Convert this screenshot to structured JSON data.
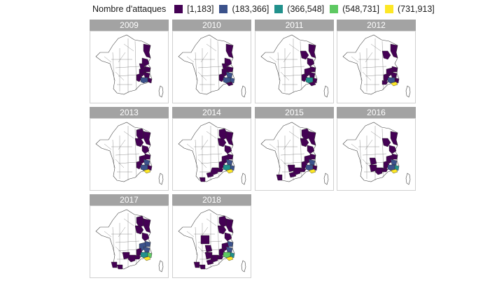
{
  "chart_data": {
    "type": "choropleth-map-facets",
    "legend": {
      "title": "Nombre d'attaques",
      "bins": [
        {
          "label": "[1,183]",
          "color": "#440154"
        },
        {
          "label": "(183,366]",
          "color": "#3b528b"
        },
        {
          "label": "(366,548]",
          "color": "#21918c"
        },
        {
          "label": "(548,731]",
          "color": "#5ec962"
        },
        {
          "label": "(731,913]",
          "color": "#fde725"
        }
      ]
    },
    "panels": [
      {
        "year": "2009",
        "regions": {
          "jura": 0,
          "isere": 0,
          "savoie": 0,
          "ain": 0,
          "drome": 0,
          "hautesalpes": 0,
          "alpesmar": 0,
          "alpesdhp": 1,
          "vosges": 0
        }
      },
      {
        "year": "2010",
        "regions": {
          "jura": 0,
          "isere": 0,
          "savoie": 0,
          "ain": 0,
          "drome": 0,
          "hautesalpes": 1,
          "alpesmar": 1,
          "alpesdhp": 1,
          "vosges": 0,
          "var": 0
        }
      },
      {
        "year": "2011",
        "regions": {
          "haute-marne": 0,
          "vosges": 0,
          "jura": 0,
          "savoie": 0,
          "isere": 0,
          "drome": 0,
          "hautesalpes": 0,
          "alpesmar": 0,
          "alpesdhp": 2,
          "var": 0
        }
      },
      {
        "year": "2012",
        "regions": {
          "vosges": 0,
          "haute-marne": 0,
          "savoie": 0,
          "isere": 0,
          "drome": 0,
          "hautesalpes": 0,
          "alpesmar": 0,
          "alpesdhp": 1,
          "var": 4,
          "vaucluse": 0
        }
      },
      {
        "year": "2013",
        "regions": {
          "vosges": 0,
          "haute-marne": 0,
          "meuse": 0,
          "jura": 0,
          "savoie": 0,
          "isere": 0,
          "drome": 0,
          "hautesalpes": 1,
          "alpesmar": 0,
          "alpesdhp": 1,
          "var": 4
        }
      },
      {
        "year": "2014",
        "regions": {
          "vosges": 0,
          "haute-marne": 0,
          "meuse": 0,
          "jura": 0,
          "savoie": 0,
          "isere": 0,
          "drome": 0,
          "hautesalpes": 1,
          "alpesmar": 1,
          "alpesdhp": 2,
          "var": 4,
          "vaucluse": 0,
          "herault": 0,
          "gard": 0,
          "ariege": 0
        }
      },
      {
        "year": "2015",
        "regions": {
          "vosges": 0,
          "haute-marne": 0,
          "meuse": 0,
          "jura": 0,
          "savoie": 0,
          "isere": 0,
          "drome": 0,
          "hautesalpes": 1,
          "alpesmar": 0,
          "alpesdhp": 1,
          "var": 4,
          "vaucluse": 0,
          "herault": 0,
          "gard": 0,
          "aveyron": 0,
          "pyrenees": 0
        }
      },
      {
        "year": "2016",
        "regions": {
          "vosges": 0,
          "haute-marne": 0,
          "jura": 0,
          "savoie": 0,
          "isere": 0,
          "drome": 0,
          "hautesalpes": 1,
          "alpesmar": 2,
          "alpesdhp": 1,
          "var": 4,
          "vaucluse": 0,
          "gard": 0,
          "aveyron": 0,
          "cantal": 0
        }
      },
      {
        "year": "2017",
        "regions": {
          "vosges": 0,
          "haute-marne": 0,
          "meuse": 0,
          "jura": 0,
          "savoie": 1,
          "isere": 1,
          "drome": 0,
          "hautesalpes": 1,
          "alpesmar": 3,
          "alpesdhp": 2,
          "var": 4,
          "vaucluse": 0,
          "gard": 0,
          "aveyron": 0,
          "pyrenees": 0,
          "ariege": 0
        }
      },
      {
        "year": "2018",
        "regions": {
          "vosges": 0,
          "haute-marne": 0,
          "meuse": 0,
          "jura": 0,
          "savoie": 1,
          "isere": 0,
          "drome": 0,
          "hautesalpes": 1,
          "alpesmar": 2,
          "alpesdhp": 3,
          "var": 4,
          "vaucluse": 0,
          "gard": 0,
          "aveyron": 0,
          "cantal": 0,
          "pyrenees": 0,
          "ariege": 0,
          "herault": 0,
          "centre": 0
        }
      }
    ]
  }
}
